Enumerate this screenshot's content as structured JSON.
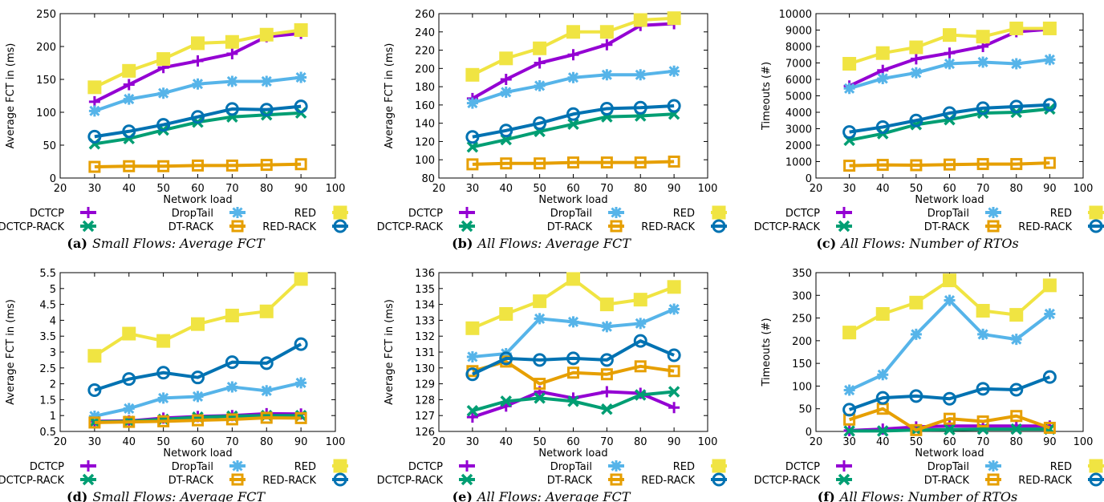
{
  "series_style": [
    {
      "name": "DCTCP",
      "color": "#9400d3",
      "marker": "plus"
    },
    {
      "name": "DropTail",
      "color": "#56b4e9",
      "marker": "star"
    },
    {
      "name": "RED",
      "color": "#f0e442",
      "marker": "filled-square"
    },
    {
      "name": "DCTCP-RACK",
      "color": "#009e73",
      "marker": "cross"
    },
    {
      "name": "DT-RACK",
      "color": "#e69f00",
      "marker": "open-square"
    },
    {
      "name": "RED-RACK",
      "color": "#0072b2",
      "marker": "open-circle"
    }
  ],
  "chart_data": [
    {
      "type": "line",
      "caption_letter": "(a)",
      "caption_text": "Small Flows: Average FCT",
      "xlabel": "Network load",
      "ylabel": "Average FCT in (ms)",
      "xlim": [
        20,
        100
      ],
      "xticks": [
        20,
        30,
        40,
        50,
        60,
        70,
        80,
        90,
        100
      ],
      "ylim": [
        0,
        250
      ],
      "yticks": [
        0,
        50,
        100,
        150,
        200,
        250
      ],
      "ytick_labels": [
        "0",
        "50",
        "100",
        "150",
        "200",
        "250"
      ],
      "grid": false,
      "legend": "bottom",
      "x": [
        30,
        40,
        50,
        60,
        70,
        80,
        90
      ],
      "series": [
        {
          "name": "DCTCP",
          "values": [
            116,
            142,
            168,
            178,
            189,
            215,
            220
          ]
        },
        {
          "name": "DropTail",
          "values": [
            102,
            120,
            129,
            143,
            147,
            147,
            153
          ]
        },
        {
          "name": "RED",
          "values": [
            138,
            163,
            181,
            205,
            207,
            218,
            225
          ]
        },
        {
          "name": "DCTCP-RACK",
          "values": [
            52,
            60,
            73,
            85,
            93,
            96,
            99
          ]
        },
        {
          "name": "DT-RACK",
          "values": [
            17,
            18,
            18,
            19,
            19,
            20,
            21
          ]
        },
        {
          "name": "RED-RACK",
          "values": [
            63,
            71,
            81,
            93,
            105,
            104,
            109
          ]
        }
      ]
    },
    {
      "type": "line",
      "caption_letter": "(b)",
      "caption_text": "All Flows: Average FCT",
      "xlabel": "Network load",
      "ylabel": "Average FCT in (ms)",
      "xlim": [
        20,
        100
      ],
      "xticks": [
        20,
        30,
        40,
        50,
        60,
        70,
        80,
        90,
        100
      ],
      "ylim": [
        80,
        260
      ],
      "yticks": [
        80,
        100,
        120,
        140,
        160,
        180,
        200,
        220,
        240,
        260
      ],
      "ytick_labels": [
        "80",
        "100",
        "120",
        "140",
        "160",
        "180",
        "200",
        "220",
        "240",
        "260"
      ],
      "grid": false,
      "legend": "bottom",
      "x": [
        30,
        40,
        50,
        60,
        70,
        80,
        90
      ],
      "series": [
        {
          "name": "DCTCP",
          "values": [
            167,
            188,
            206,
            215,
            226,
            247,
            249
          ]
        },
        {
          "name": "DropTail",
          "values": [
            162,
            174,
            181,
            190,
            193,
            193,
            197
          ]
        },
        {
          "name": "RED",
          "values": [
            193,
            211,
            222,
            240,
            240,
            253,
            255
          ]
        },
        {
          "name": "DCTCP-RACK",
          "values": [
            114,
            122,
            131,
            139,
            147,
            148,
            150
          ]
        },
        {
          "name": "DT-RACK",
          "values": [
            95,
            96,
            96,
            97,
            97,
            97,
            98
          ]
        },
        {
          "name": "RED-RACK",
          "values": [
            125,
            132,
            140,
            150,
            156,
            157,
            159
          ]
        }
      ]
    },
    {
      "type": "line",
      "caption_letter": "(c)",
      "caption_text": "All Flows: Number of RTOs",
      "xlabel": "Network load",
      "ylabel": "Timeouts (#)",
      "xlim": [
        20,
        100
      ],
      "xticks": [
        20,
        30,
        40,
        50,
        60,
        70,
        80,
        90,
        100
      ],
      "ylim": [
        0,
        10000
      ],
      "yticks": [
        0,
        1000,
        2000,
        3000,
        4000,
        5000,
        6000,
        7000,
        8000,
        9000,
        10000
      ],
      "ytick_labels": [
        "0",
        "1000",
        "2000",
        "3000",
        "4000",
        "5000",
        "6000",
        "7000",
        "8000",
        "9000",
        "10000"
      ],
      "grid": false,
      "legend": "bottom",
      "x": [
        30,
        40,
        50,
        60,
        70,
        80,
        90
      ],
      "series": [
        {
          "name": "DCTCP",
          "values": [
            5600,
            6550,
            7250,
            7600,
            8000,
            8900,
            9050
          ]
        },
        {
          "name": "DropTail",
          "values": [
            5450,
            6050,
            6400,
            6950,
            7050,
            6950,
            7200
          ]
        },
        {
          "name": "RED",
          "values": [
            6950,
            7600,
            7950,
            8700,
            8600,
            9100,
            9100
          ]
        },
        {
          "name": "DCTCP-RACK",
          "values": [
            2300,
            2700,
            3250,
            3550,
            3950,
            4000,
            4200
          ]
        },
        {
          "name": "DT-RACK",
          "values": [
            750,
            800,
            780,
            820,
            850,
            850,
            920
          ]
        },
        {
          "name": "RED-RACK",
          "values": [
            2800,
            3100,
            3500,
            3950,
            4250,
            4350,
            4450
          ]
        }
      ]
    },
    {
      "type": "line",
      "caption_letter": "(d)",
      "caption_text": "Small Flows: Average FCT",
      "xlabel": "Network load",
      "ylabel": "Average FCT in (ms)",
      "xlim": [
        20,
        100
      ],
      "xticks": [
        20,
        30,
        40,
        50,
        60,
        70,
        80,
        90,
        100
      ],
      "ylim": [
        0.5,
        5.5
      ],
      "yticks": [
        0.5,
        1,
        1.5,
        2,
        2.5,
        3,
        3.5,
        4,
        4.5,
        5,
        5.5
      ],
      "ytick_labels": [
        "0.5",
        "1",
        "1.5",
        "2",
        "2.5",
        "3",
        "3.5",
        "4",
        "4.5",
        "5",
        "5.5"
      ],
      "grid": false,
      "legend": "bottom",
      "x": [
        30,
        40,
        50,
        60,
        70,
        80,
        90
      ],
      "series": [
        {
          "name": "DCTCP",
          "values": [
            0.82,
            0.83,
            0.92,
            0.97,
            1.0,
            1.06,
            1.05
          ]
        },
        {
          "name": "DropTail",
          "values": [
            0.98,
            1.22,
            1.55,
            1.6,
            1.9,
            1.78,
            2.03
          ]
        },
        {
          "name": "RED",
          "values": [
            2.88,
            3.58,
            3.35,
            3.88,
            4.15,
            4.28,
            5.3
          ]
        },
        {
          "name": "DCTCP-RACK",
          "values": [
            0.8,
            0.82,
            0.88,
            0.95,
            0.98,
            1.0,
            1.0
          ]
        },
        {
          "name": "DT-RACK",
          "values": [
            0.78,
            0.8,
            0.82,
            0.85,
            0.88,
            0.93,
            0.92
          ]
        },
        {
          "name": "RED-RACK",
          "values": [
            1.8,
            2.15,
            2.35,
            2.2,
            2.68,
            2.65,
            3.25
          ]
        }
      ]
    },
    {
      "type": "line",
      "caption_letter": "(e)",
      "caption_text": "All Flows: Average FCT",
      "xlabel": "Network load",
      "ylabel": "Average FCT in (ms)",
      "xlim": [
        20,
        100
      ],
      "xticks": [
        20,
        30,
        40,
        50,
        60,
        70,
        80,
        90,
        100
      ],
      "ylim": [
        126,
        136
      ],
      "yticks": [
        126,
        127,
        128,
        129,
        130,
        131,
        132,
        133,
        134,
        135,
        136
      ],
      "ytick_labels": [
        "126",
        "127",
        "128",
        "129",
        "130",
        "131",
        "132",
        "133",
        "134",
        "135",
        "136"
      ],
      "grid": false,
      "legend": "bottom",
      "x": [
        30,
        40,
        50,
        60,
        70,
        80,
        90
      ],
      "series": [
        {
          "name": "DCTCP",
          "values": [
            126.9,
            127.6,
            128.5,
            128.1,
            128.5,
            128.4,
            127.5
          ]
        },
        {
          "name": "DropTail",
          "values": [
            130.7,
            130.9,
            133.1,
            132.9,
            132.6,
            132.8,
            133.7
          ]
        },
        {
          "name": "RED",
          "values": [
            132.5,
            133.4,
            134.2,
            135.6,
            134.0,
            134.3,
            135.1
          ]
        },
        {
          "name": "DCTCP-RACK",
          "values": [
            127.3,
            127.9,
            128.1,
            127.9,
            127.4,
            128.3,
            128.5
          ]
        },
        {
          "name": "DT-RACK",
          "values": [
            129.8,
            130.4,
            129.0,
            129.7,
            129.6,
            130.1,
            129.8
          ]
        },
        {
          "name": "RED-RACK",
          "values": [
            129.6,
            130.6,
            130.5,
            130.6,
            130.5,
            131.7,
            130.8
          ]
        }
      ]
    },
    {
      "type": "line",
      "caption_letter": "(f)",
      "caption_text": "All Flows: Number of RTOs",
      "xlabel": "Network load",
      "ylabel": "Timeouts (#)",
      "xlim": [
        20,
        100
      ],
      "xticks": [
        20,
        30,
        40,
        50,
        60,
        70,
        80,
        90,
        100
      ],
      "ylim": [
        0,
        350
      ],
      "yticks": [
        0,
        50,
        100,
        150,
        200,
        250,
        300,
        350
      ],
      "ytick_labels": [
        "0",
        "50",
        "100",
        "150",
        "200",
        "250",
        "300",
        "350"
      ],
      "grid": false,
      "legend": "bottom",
      "x": [
        30,
        40,
        50,
        60,
        70,
        80,
        90
      ],
      "series": [
        {
          "name": "DCTCP",
          "values": [
            2,
            5,
            10,
            12,
            12,
            12,
            12
          ]
        },
        {
          "name": "DropTail",
          "values": [
            91,
            125,
            214,
            289,
            214,
            203,
            259
          ]
        },
        {
          "name": "RED",
          "values": [
            218,
            259,
            284,
            333,
            266,
            257,
            322
          ]
        },
        {
          "name": "DCTCP-RACK",
          "values": [
            1,
            1,
            3,
            4,
            5,
            5,
            5
          ]
        },
        {
          "name": "DT-RACK",
          "values": [
            26,
            50,
            3,
            28,
            22,
            34,
            8
          ]
        },
        {
          "name": "RED-RACK",
          "values": [
            48,
            74,
            78,
            72,
            94,
            92,
            120
          ]
        }
      ]
    }
  ]
}
